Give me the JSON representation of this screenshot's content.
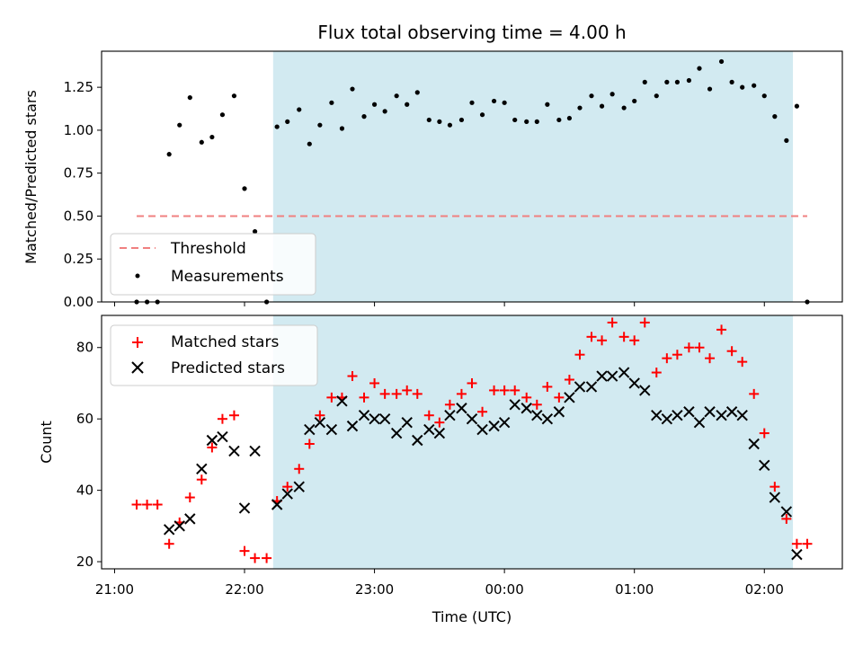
{
  "chart_data": [
    {
      "type": "scatter",
      "title": "Flux total observing time = 4.00 h",
      "xlabel": "",
      "ylabel": "Matched/Predicted stars",
      "x_unit": "hours since 21:00 UTC",
      "xlim": [
        -0.1,
        5.6
      ],
      "ylim": [
        0,
        1.46
      ],
      "yticks": [
        0,
        0.25,
        0.5,
        0.75,
        1.0,
        1.25
      ],
      "ytick_labels": [
        "0.00",
        "0.25",
        "0.50",
        "0.75",
        "1.00",
        "1.25"
      ],
      "observing_span": [
        1.22,
        5.22
      ],
      "threshold": {
        "name": "Threshold",
        "value": 0.5,
        "x_range": [
          0.17,
          5.33
        ],
        "color": "#f08080"
      },
      "series": [
        {
          "name": "Measurements",
          "color": "#000000",
          "x": [
            0.17,
            0.25,
            0.33,
            0.42,
            0.5,
            0.58,
            0.67,
            0.75,
            0.83,
            0.92,
            1.0,
            1.08,
            1.17,
            1.25,
            1.33,
            1.42,
            1.5,
            1.58,
            1.67,
            1.75,
            1.83,
            1.92,
            2.0,
            2.08,
            2.17,
            2.25,
            2.33,
            2.42,
            2.5,
            2.58,
            2.67,
            2.75,
            2.83,
            2.92,
            3.0,
            3.08,
            3.17,
            3.25,
            3.33,
            3.42,
            3.5,
            3.58,
            3.67,
            3.75,
            3.83,
            3.92,
            4.0,
            4.08,
            4.17,
            4.25,
            4.33,
            4.42,
            4.5,
            4.58,
            4.67,
            4.75,
            4.83,
            4.92,
            5.0,
            5.08,
            5.17,
            5.25,
            5.33
          ],
          "y": [
            0,
            0,
            0,
            0.86,
            1.03,
            1.19,
            0.93,
            0.96,
            1.09,
            1.2,
            0.66,
            0.41,
            0,
            1.02,
            1.05,
            1.12,
            0.92,
            1.03,
            1.16,
            1.01,
            1.24,
            1.08,
            1.15,
            1.11,
            1.2,
            1.15,
            1.22,
            1.06,
            1.05,
            1.03,
            1.06,
            1.16,
            1.09,
            1.17,
            1.16,
            1.06,
            1.05,
            1.05,
            1.15,
            1.06,
            1.07,
            1.13,
            1.2,
            1.14,
            1.21,
            1.13,
            1.17,
            1.28,
            1.2,
            1.28,
            1.28,
            1.29,
            1.36,
            1.24,
            1.4,
            1.28,
            1.25,
            1.26,
            1.2,
            1.08,
            0.94,
            1.14,
            0
          ]
        }
      ]
    },
    {
      "type": "scatter",
      "title": "",
      "xlabel": "Time (UTC)",
      "ylabel": "Count",
      "x_unit": "hours since 21:00 UTC",
      "xlim": [
        -0.1,
        5.6
      ],
      "ylim": [
        18,
        89
      ],
      "xticks": [
        0,
        1,
        2,
        3,
        4,
        5
      ],
      "xtick_labels": [
        "21:00",
        "22:00",
        "23:00",
        "00:00",
        "01:00",
        "02:00"
      ],
      "yticks": [
        20,
        40,
        60,
        80
      ],
      "ytick_labels": [
        "20",
        "40",
        "60",
        "80"
      ],
      "observing_span": [
        1.22,
        5.22
      ],
      "series": [
        {
          "name": "Matched stars",
          "color": "#ff0000",
          "marker": "plus",
          "x": [
            0.17,
            0.25,
            0.33,
            0.42,
            0.5,
            0.58,
            0.67,
            0.75,
            0.83,
            0.92,
            1.0,
            1.08,
            1.17,
            1.25,
            1.33,
            1.42,
            1.5,
            1.58,
            1.67,
            1.75,
            1.83,
            1.92,
            2.0,
            2.08,
            2.17,
            2.25,
            2.33,
            2.42,
            2.5,
            2.58,
            2.67,
            2.75,
            2.83,
            2.92,
            3.0,
            3.08,
            3.17,
            3.25,
            3.33,
            3.42,
            3.5,
            3.58,
            3.67,
            3.75,
            3.83,
            3.92,
            4.0,
            4.08,
            4.17,
            4.25,
            4.33,
            4.42,
            4.5,
            4.58,
            4.67,
            4.75,
            4.83,
            4.92,
            5.0,
            5.08,
            5.17,
            5.25,
            5.33
          ],
          "y": [
            36,
            36,
            36,
            25,
            31,
            38,
            43,
            52,
            60,
            61,
            23,
            21,
            21,
            37,
            41,
            46,
            53,
            61,
            66,
            66,
            72,
            66,
            70,
            67,
            67,
            68,
            67,
            61,
            59,
            64,
            67,
            70,
            62,
            68,
            68,
            68,
            66,
            64,
            69,
            66,
            71,
            78,
            83,
            82,
            87,
            83,
            82,
            87,
            73,
            77,
            78,
            80,
            80,
            77,
            85,
            79,
            76,
            67,
            56,
            41,
            32,
            25,
            25
          ]
        },
        {
          "name": "Predicted stars",
          "color": "#000000",
          "marker": "x",
          "x": [
            0.42,
            0.5,
            0.58,
            0.67,
            0.75,
            0.83,
            0.92,
            1.0,
            1.08,
            1.25,
            1.33,
            1.42,
            1.5,
            1.58,
            1.67,
            1.75,
            1.83,
            1.92,
            2.0,
            2.08,
            2.17,
            2.25,
            2.33,
            2.42,
            2.5,
            2.58,
            2.67,
            2.75,
            2.83,
            2.92,
            3.0,
            3.08,
            3.17,
            3.25,
            3.33,
            3.42,
            3.5,
            3.58,
            3.67,
            3.75,
            3.83,
            3.92,
            4.0,
            4.08,
            4.17,
            4.25,
            4.33,
            4.42,
            4.5,
            4.58,
            4.67,
            4.75,
            4.83,
            4.92,
            5.0,
            5.08,
            5.17,
            5.25
          ],
          "y": [
            29,
            30,
            32,
            46,
            54,
            55,
            51,
            35,
            51,
            36,
            39,
            41,
            57,
            59,
            57,
            65,
            58,
            61,
            60,
            60,
            56,
            59,
            54,
            57,
            56,
            61,
            63,
            60,
            57,
            58,
            59,
            64,
            63,
            61,
            60,
            62,
            66,
            69,
            69,
            72,
            72,
            73,
            70,
            68,
            61,
            60,
            61,
            62,
            59,
            62,
            61,
            62,
            61,
            53,
            47,
            38,
            34,
            22
          ]
        }
      ]
    }
  ]
}
